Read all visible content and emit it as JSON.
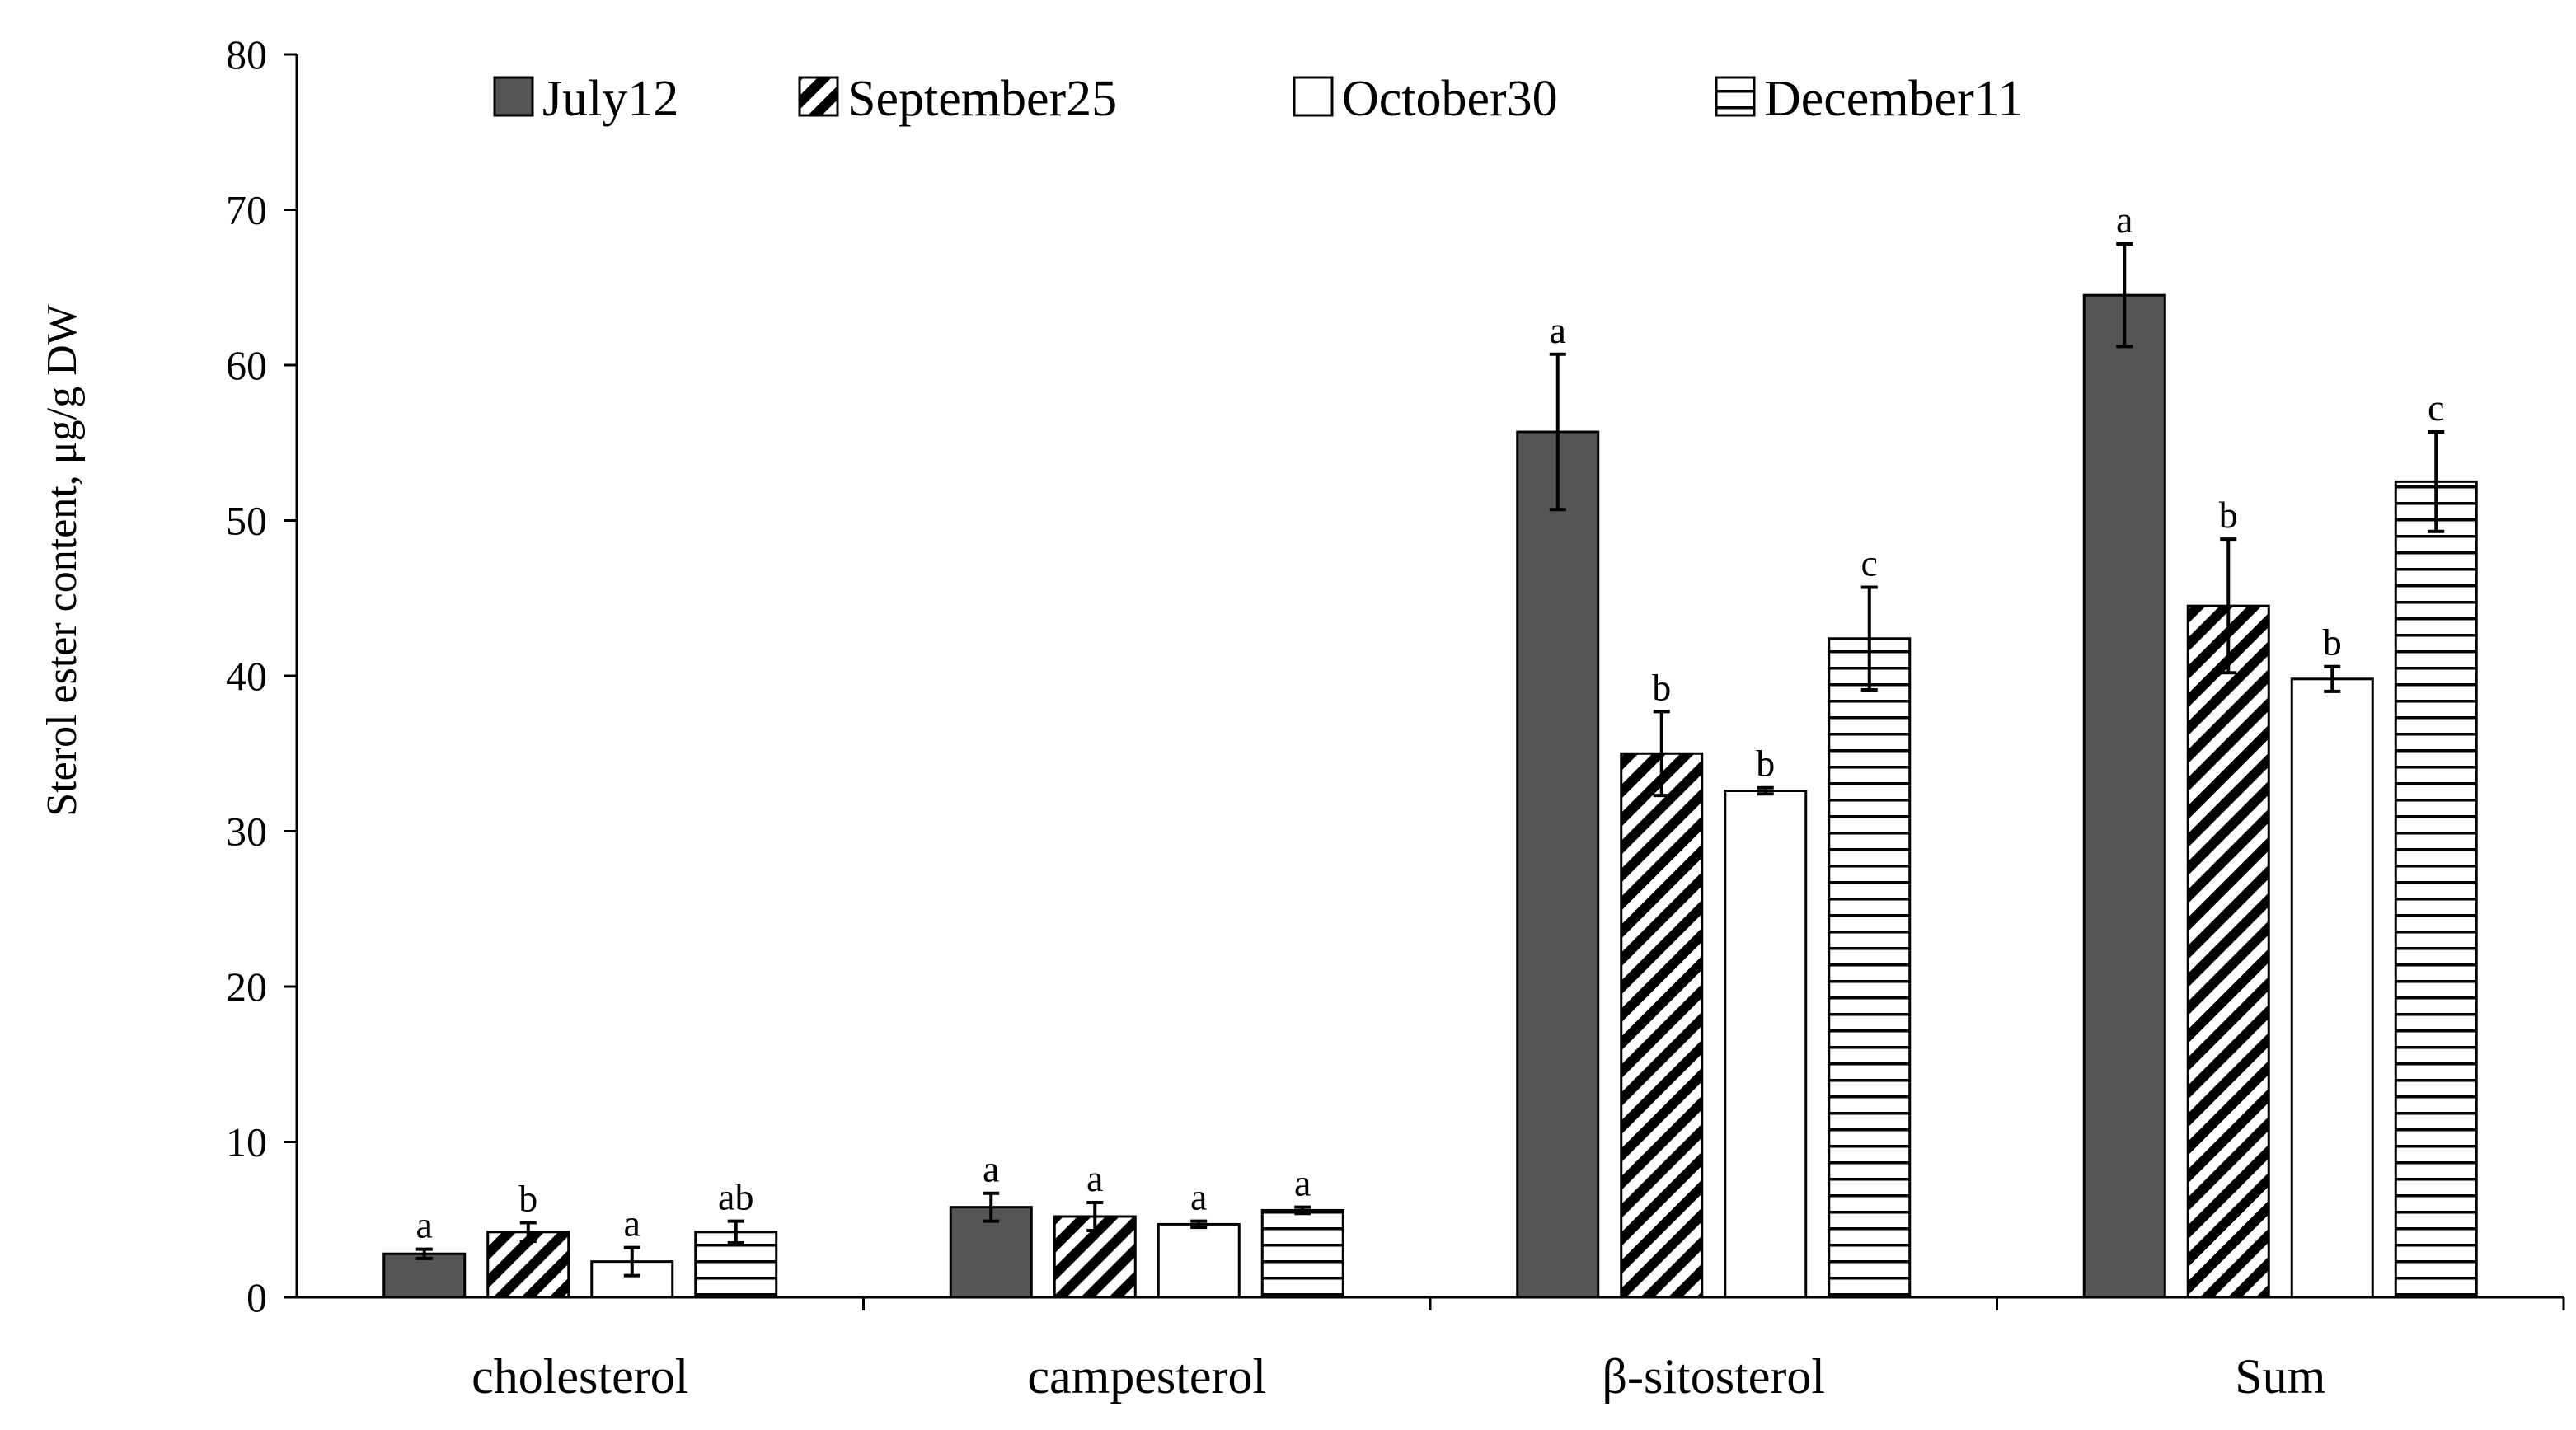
{
  "chart_data": {
    "type": "bar",
    "title": "",
    "xlabel": "",
    "ylabel": "Sterol ester content, μg/g DW",
    "ylim": [
      0,
      80
    ],
    "yticks": [
      0,
      10,
      20,
      30,
      40,
      50,
      60,
      70,
      80
    ],
    "categories": [
      "cholesterol",
      "campesterol",
      "β-sitosterol",
      "Sum"
    ],
    "series": [
      {
        "name": "July12",
        "legend_parts": [
          "July",
          "12"
        ],
        "fill": "solid-dark",
        "color": "#555555",
        "values": [
          2.8,
          5.8,
          55.7,
          64.5
        ],
        "errors": [
          0.3,
          0.9,
          5.0,
          3.3
        ],
        "labels": [
          "a",
          "a",
          "a",
          "a"
        ]
      },
      {
        "name": "September25",
        "legend_parts": [
          "September",
          "25"
        ],
        "fill": "diagonal-stripes",
        "color": "#000000",
        "values": [
          4.2,
          5.2,
          35.0,
          44.5
        ],
        "errors": [
          0.6,
          0.9,
          2.7,
          4.3
        ],
        "labels": [
          "b",
          "a",
          "b",
          "b"
        ]
      },
      {
        "name": "October30",
        "legend_parts": [
          "October",
          "30"
        ],
        "fill": "white",
        "color": "#ffffff",
        "values": [
          2.3,
          4.7,
          32.6,
          39.8
        ],
        "errors": [
          0.9,
          0.2,
          0.2,
          0.8
        ],
        "labels": [
          "a",
          "a",
          "b",
          "b"
        ]
      },
      {
        "name": "December11",
        "legend_parts": [
          "December",
          "11"
        ],
        "fill": "horizontal-stripes",
        "color": "#000000",
        "values": [
          4.2,
          5.6,
          42.4,
          52.5
        ],
        "errors": [
          0.7,
          0.2,
          3.3,
          3.2
        ],
        "labels": [
          "ab",
          "a",
          "c",
          "c"
        ]
      }
    ],
    "legend": "top"
  }
}
